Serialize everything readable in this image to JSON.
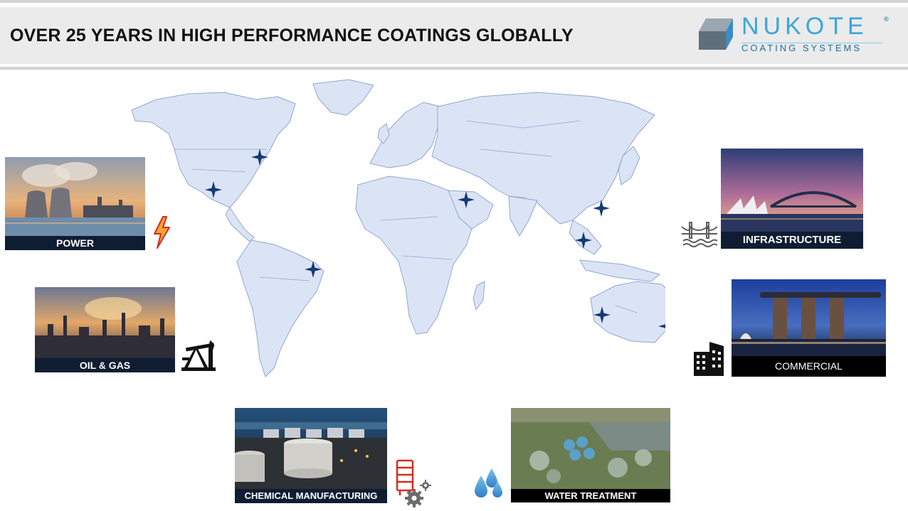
{
  "header": {
    "title": "OVER 25 YEARS IN HIGH PERFORMANCE COATINGS GLOBALLY"
  },
  "logo": {
    "name": "NUKOTE",
    "registered": "®",
    "tagline": "COATING SYSTEMS",
    "color_primary": "#3aa6dd",
    "color_dark": "#1e6d97"
  },
  "map": {
    "land_color": "#dbe4f5",
    "border_color": "#8fa6d0",
    "marker_color": "#163a73",
    "marker_icon": "four-point-star-icon"
  },
  "sectors": [
    {
      "label": "POWER",
      "icon": "lightning-bolt-icon"
    },
    {
      "label": "OIL & GAS",
      "icon": "oil-pumpjack-icon"
    },
    {
      "label": "INFRASTRUCTURE",
      "icon": "bridge-icon"
    },
    {
      "label": "COMMERCIAL",
      "icon": "office-building-icon"
    },
    {
      "label": "CHEMICAL MANUFACTURING",
      "icon": "factory-gear-icon"
    },
    {
      "label": "WATER TREATMENT",
      "icon": "water-drops-icon"
    }
  ]
}
